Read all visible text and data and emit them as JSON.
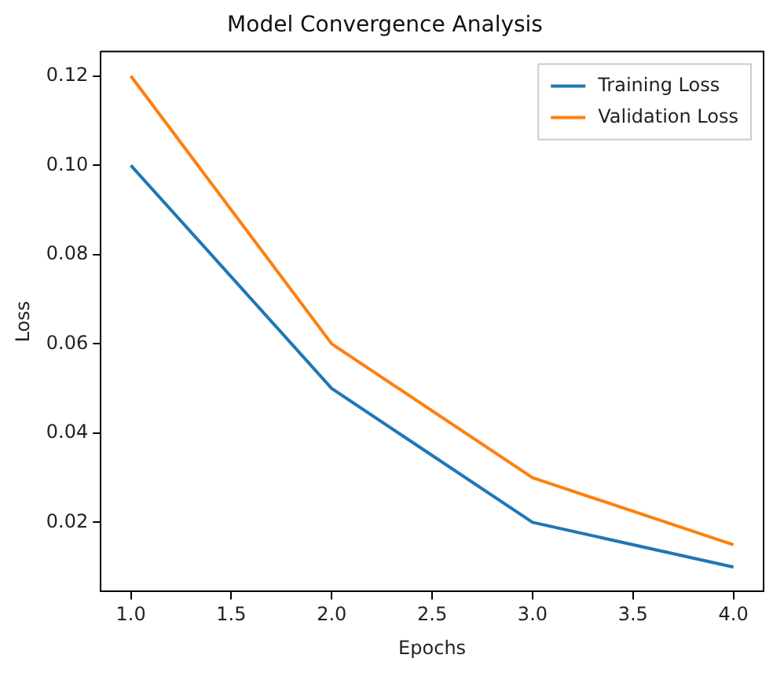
{
  "chart_data": {
    "type": "line",
    "title": "Model Convergence Analysis",
    "xlabel": "Epochs",
    "ylabel": "Loss",
    "x": [
      1,
      2,
      3,
      4
    ],
    "series": [
      {
        "name": "Training Loss",
        "color": "#1f77b4",
        "values": [
          0.1,
          0.05,
          0.02,
          0.01
        ]
      },
      {
        "name": "Validation Loss",
        "color": "#ff7f0e",
        "values": [
          0.12,
          0.06,
          0.03,
          0.015
        ]
      }
    ],
    "xlim": [
      0.85,
      4.15
    ],
    "xticks": [
      {
        "value": 1,
        "label": "1.0"
      },
      1.5,
      {
        "value": 2,
        "label": "2.0"
      },
      2.5,
      {
        "value": 3,
        "label": "3.0"
      },
      3.5,
      {
        "value": 4,
        "label": "4.0"
      }
    ],
    "ylim": [
      0.0045,
      0.1255
    ],
    "yticks": [
      0.02,
      0.04,
      0.06,
      0.08,
      {
        "value": 0.1,
        "label": "0.10"
      },
      0.12
    ],
    "grid": false,
    "legend": "top right",
    "marker": "none",
    "line_style": "solid"
  }
}
